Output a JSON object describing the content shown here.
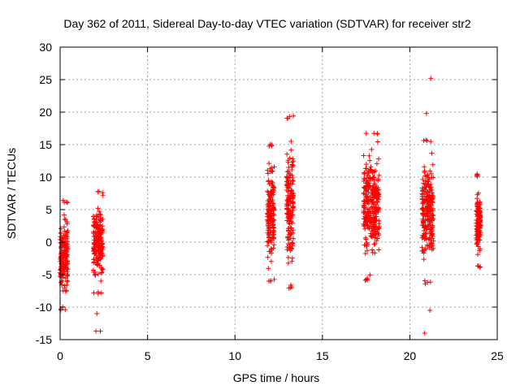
{
  "chart_data": {
    "type": "scatter",
    "title": "Day 362 of 2011, Sidereal Day-to-day VTEC variation (SDTVAR) for receiver str2",
    "xlabel": "GPS time / hours",
    "ylabel": "SDTVAR / TECUs",
    "xlim": [
      0,
      25
    ],
    "ylim": [
      -15,
      30
    ],
    "xticks": [
      0,
      5,
      10,
      15,
      20,
      25
    ],
    "yticks": [
      -15,
      -10,
      -5,
      0,
      5,
      10,
      15,
      20,
      25,
      30
    ],
    "grid": true,
    "marker": "+",
    "series_color": "#ff0000",
    "clusters": [
      {
        "x_start": 0.0,
        "x_end": 0.45,
        "y_min": -10.5,
        "y_max": 6.5
      },
      {
        "x_start": 1.9,
        "x_end": 2.45,
        "y_min": -8.0,
        "y_max": 7.8
      },
      {
        "x_start": 11.85,
        "x_end": 12.25,
        "y_min": -6.2,
        "y_max": 15.3
      },
      {
        "x_start": 12.95,
        "x_end": 13.35,
        "y_min": -7.2,
        "y_max": 19.5
      },
      {
        "x_start": 17.35,
        "x_end": 18.25,
        "y_min": -6.0,
        "y_max": 17.0
      },
      {
        "x_start": 20.7,
        "x_end": 21.35,
        "y_min": -6.5,
        "y_max": 16.0
      },
      {
        "x_start": 23.8,
        "x_end": 24.05,
        "y_min": -4.0,
        "y_max": 10.5
      }
    ],
    "outliers": [
      {
        "x": 2.1,
        "y": -11.0
      },
      {
        "x": 2.05,
        "y": -13.7
      },
      {
        "x": 2.3,
        "y": -13.7
      },
      {
        "x": 21.2,
        "y": 25.2
      },
      {
        "x": 20.95,
        "y": 19.8
      },
      {
        "x": 21.15,
        "y": -10.5
      },
      {
        "x": 20.85,
        "y": -14.0
      }
    ]
  }
}
